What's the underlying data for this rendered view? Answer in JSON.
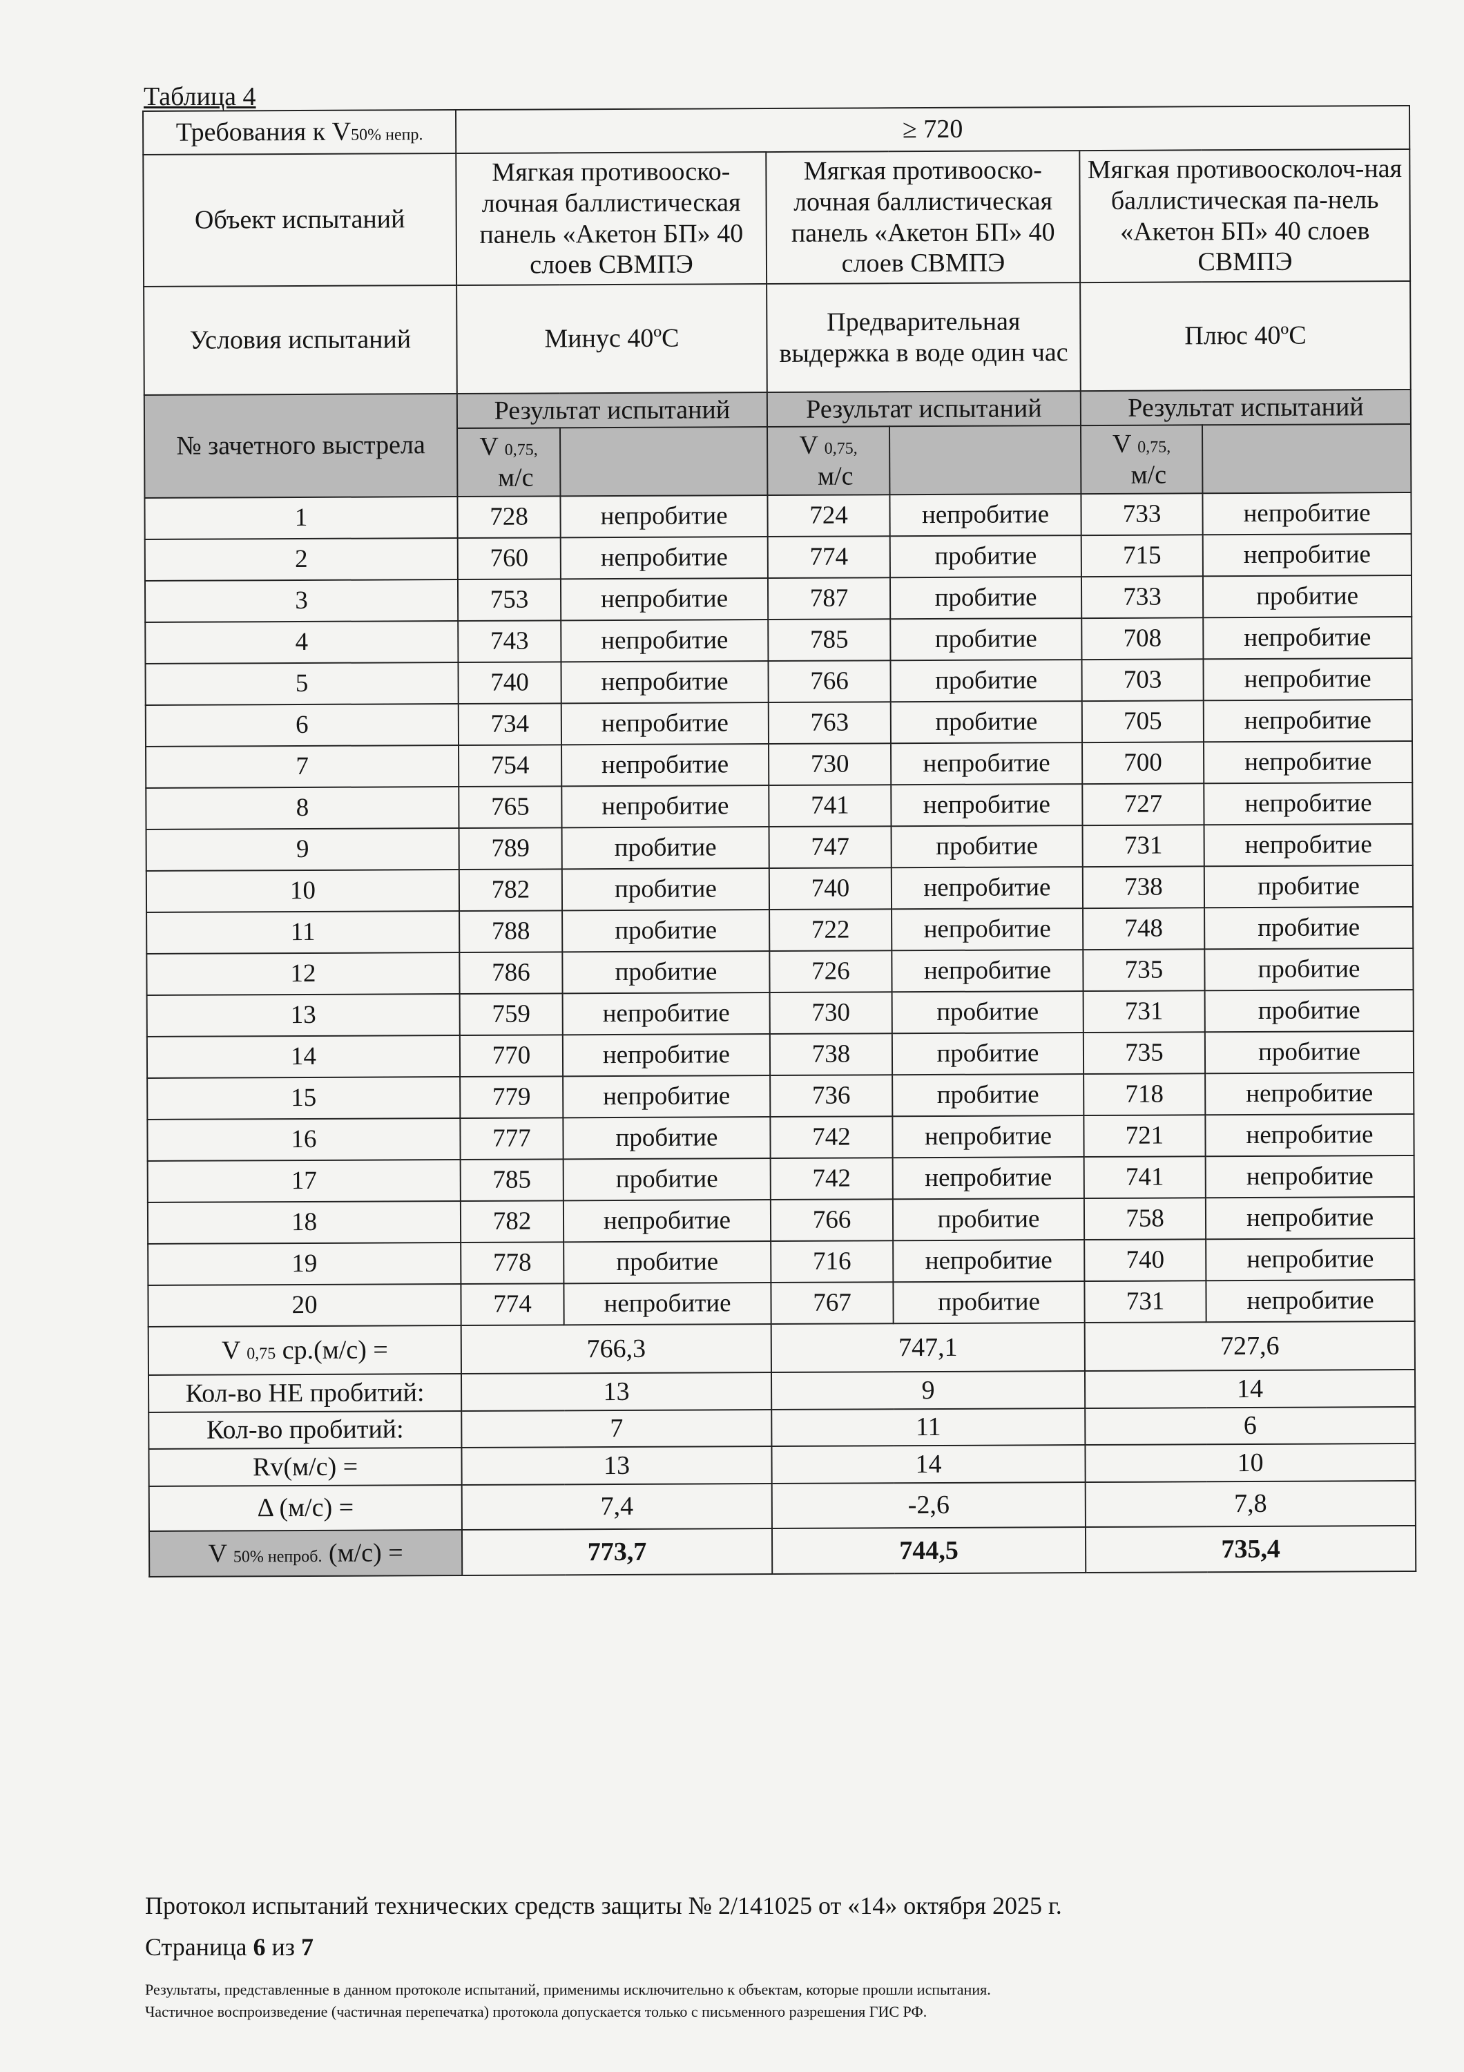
{
  "caption": "Таблица 4",
  "requirement": {
    "label": "Требования к V",
    "label_sub": "50% непр.",
    "value": "≥ 720"
  },
  "object": {
    "label": "Объект испытаний",
    "values": [
      "Мягкая противооско-лочная баллистическая панель «Акетон БП» 40 слоев СВМПЭ",
      "Мягкая противооско-лочная баллистическая панель «Акетон БП» 40 слоев СВМПЭ",
      "Мягкая противоосколоч-ная баллистическая па-нель «Акетон БП» 40 слоев СВМПЭ"
    ]
  },
  "conditions": {
    "label": "Условия испытаний",
    "values": [
      "Минус 40ºС",
      "Предварительная выдержка в воде один час",
      "Плюс 40ºС"
    ]
  },
  "header": {
    "shot_label": "№ зачетного выстрела",
    "result_label": "Результат испытаний",
    "v_label": "V",
    "v_sub": "0,75,",
    "v_unit": "м/с"
  },
  "rows": [
    {
      "n": "1",
      "v": [
        "728",
        "724",
        "733"
      ],
      "r": [
        "непробитие",
        "непробитие",
        "непробитие"
      ]
    },
    {
      "n": "2",
      "v": [
        "760",
        "774",
        "715"
      ],
      "r": [
        "непробитие",
        "пробитие",
        "непробитие"
      ]
    },
    {
      "n": "3",
      "v": [
        "753",
        "787",
        "733"
      ],
      "r": [
        "непробитие",
        "пробитие",
        "пробитие"
      ]
    },
    {
      "n": "4",
      "v": [
        "743",
        "785",
        "708"
      ],
      "r": [
        "непробитие",
        "пробитие",
        "непробитие"
      ]
    },
    {
      "n": "5",
      "v": [
        "740",
        "766",
        "703"
      ],
      "r": [
        "непробитие",
        "пробитие",
        "непробитие"
      ]
    },
    {
      "n": "6",
      "v": [
        "734",
        "763",
        "705"
      ],
      "r": [
        "непробитие",
        "пробитие",
        "непробитие"
      ]
    },
    {
      "n": "7",
      "v": [
        "754",
        "730",
        "700"
      ],
      "r": [
        "непробитие",
        "непробитие",
        "непробитие"
      ]
    },
    {
      "n": "8",
      "v": [
        "765",
        "741",
        "727"
      ],
      "r": [
        "непробитие",
        "непробитие",
        "непробитие"
      ]
    },
    {
      "n": "9",
      "v": [
        "789",
        "747",
        "731"
      ],
      "r": [
        "пробитие",
        "пробитие",
        "непробитие"
      ]
    },
    {
      "n": "10",
      "v": [
        "782",
        "740",
        "738"
      ],
      "r": [
        "пробитие",
        "непробитие",
        "пробитие"
      ]
    },
    {
      "n": "11",
      "v": [
        "788",
        "722",
        "748"
      ],
      "r": [
        "пробитие",
        "непробитие",
        "пробитие"
      ]
    },
    {
      "n": "12",
      "v": [
        "786",
        "726",
        "735"
      ],
      "r": [
        "пробитие",
        "непробитие",
        "пробитие"
      ]
    },
    {
      "n": "13",
      "v": [
        "759",
        "730",
        "731"
      ],
      "r": [
        "непробитие",
        "пробитие",
        "пробитие"
      ]
    },
    {
      "n": "14",
      "v": [
        "770",
        "738",
        "735"
      ],
      "r": [
        "непробитие",
        "пробитие",
        "пробитие"
      ]
    },
    {
      "n": "15",
      "v": [
        "779",
        "736",
        "718"
      ],
      "r": [
        "непробитие",
        "пробитие",
        "непробитие"
      ]
    },
    {
      "n": "16",
      "v": [
        "777",
        "742",
        "721"
      ],
      "r": [
        "пробитие",
        "непробитие",
        "непробитие"
      ]
    },
    {
      "n": "17",
      "v": [
        "785",
        "742",
        "741"
      ],
      "r": [
        "пробитие",
        "непробитие",
        "непробитие"
      ]
    },
    {
      "n": "18",
      "v": [
        "782",
        "766",
        "758"
      ],
      "r": [
        "непробитие",
        "пробитие",
        "непробитие"
      ]
    },
    {
      "n": "19",
      "v": [
        "778",
        "716",
        "740"
      ],
      "r": [
        "пробитие",
        "непробитие",
        "непробитие"
      ]
    },
    {
      "n": "20",
      "v": [
        "774",
        "767",
        "731"
      ],
      "r": [
        "непробитие",
        "пробитие",
        "непробитие"
      ]
    }
  ],
  "summary": [
    {
      "label": "V",
      "sub": "0,75",
      "label_rest": " ср.(м/с) =",
      "values": [
        "766,3",
        "747,1",
        "727,6"
      ]
    },
    {
      "label": "Кол-во НЕ пробитий:",
      "sub": "",
      "label_rest": "",
      "values": [
        "13",
        "9",
        "14"
      ]
    },
    {
      "label": "Кол-во пробитий:",
      "sub": "",
      "label_rest": "",
      "values": [
        "7",
        "11",
        "6"
      ]
    },
    {
      "label": "Rv(м/с) =",
      "sub": "",
      "label_rest": "",
      "values": [
        "13",
        "14",
        "10"
      ]
    },
    {
      "label": "Δ (м/с) =",
      "sub": "",
      "label_rest": "",
      "values": [
        "7,4",
        "-2,6",
        "7,8"
      ]
    },
    {
      "label": "V",
      "sub": "50% непроб.",
      "label_rest": " (м/с) =",
      "values": [
        "773,7",
        "744,5",
        "735,4"
      ]
    }
  ],
  "footer": {
    "protocol": "Протокол испытаний технических средств защиты № 2/141025 от «14» октября 2025 г.",
    "page_prefix": "Страница ",
    "page_current": "6",
    "page_mid": " из ",
    "page_total": "7",
    "note1": "Результаты, представленные в данном протоколе испытаний, применимы исключительно к объектам, которые прошли испытания.",
    "note2": "Частичное воспроизведение (частичная перепечатка) протокола допускается только с письменного разрешения ГИС РФ."
  }
}
